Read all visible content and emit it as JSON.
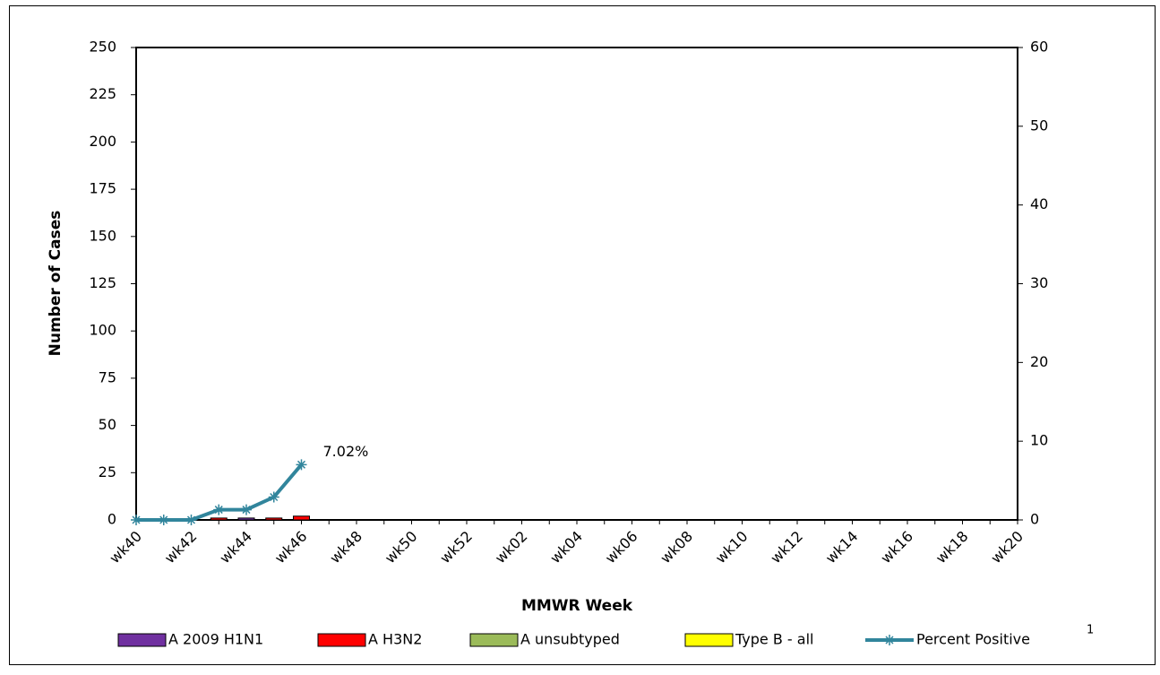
{
  "chart_data": {
    "type": "bar",
    "x_label": "MMWR Week",
    "y_label": "Number of Cases",
    "annotation": "1",
    "categories": [
      "wk40",
      null,
      "wk42",
      null,
      "wk44",
      null,
      "wk46",
      null,
      "wk48",
      null,
      "wk50",
      null,
      "wk52",
      null,
      "wk02",
      null,
      "wk04",
      null,
      "wk06",
      null,
      "wk08",
      null,
      "wk10",
      null,
      "wk12",
      null,
      "wk14",
      null,
      "wk16",
      null,
      "wk18",
      null,
      "wk20"
    ],
    "series": [
      {
        "name": "A 2009 H1N1",
        "type": "bar",
        "color": "#7030a0",
        "values": [
          0,
          0,
          0,
          0,
          1,
          0,
          0,
          null,
          null,
          null,
          null,
          null,
          null,
          null,
          null,
          null,
          null,
          null,
          null,
          null,
          null,
          null,
          null,
          null,
          null,
          null,
          null,
          null,
          null,
          null,
          null,
          null,
          null
        ]
      },
      {
        "name": "A H3N2",
        "type": "bar",
        "color": "#ff0000",
        "values": [
          0,
          0,
          0,
          1,
          0,
          1,
          2,
          null,
          null,
          null,
          null,
          null,
          null,
          null,
          null,
          null,
          null,
          null,
          null,
          null,
          null,
          null,
          null,
          null,
          null,
          null,
          null,
          null,
          null,
          null,
          null,
          null,
          null
        ]
      },
      {
        "name": "A unsubtyped",
        "type": "bar",
        "color": "#9bbb59",
        "values": [
          0,
          0,
          0,
          0,
          0,
          0,
          0,
          null,
          null,
          null,
          null,
          null,
          null,
          null,
          null,
          null,
          null,
          null,
          null,
          null,
          null,
          null,
          null,
          null,
          null,
          null,
          null,
          null,
          null,
          null,
          null,
          null,
          null
        ]
      },
      {
        "name": "Type B - all",
        "type": "bar",
        "color": "#ffff00",
        "values": [
          0,
          0,
          0,
          0,
          0,
          0,
          0,
          null,
          null,
          null,
          null,
          null,
          null,
          null,
          null,
          null,
          null,
          null,
          null,
          null,
          null,
          null,
          null,
          null,
          null,
          null,
          null,
          null,
          null,
          null,
          null,
          null,
          null
        ]
      },
      {
        "name": "Percent Positive",
        "type": "line",
        "axis": "y2",
        "color": "#31859c",
        "values": [
          0,
          0,
          0,
          1.3,
          1.3,
          2.9,
          7.02,
          null,
          null,
          null,
          null,
          null,
          null,
          null,
          null,
          null,
          null,
          null,
          null,
          null,
          null,
          null,
          null,
          null,
          null,
          null,
          null,
          null,
          null,
          null,
          null,
          null,
          null
        ],
        "value_labels": [
          null,
          null,
          null,
          null,
          null,
          null,
          "7.02%",
          null,
          null,
          null,
          null,
          null,
          null,
          null,
          null,
          null,
          null,
          null,
          null,
          null,
          null,
          null,
          null,
          null,
          null,
          null,
          null,
          null,
          null,
          null,
          null,
          null,
          null
        ]
      }
    ],
    "ylim": [
      0,
      250
    ],
    "yticks": [
      0,
      25,
      50,
      75,
      100,
      125,
      150,
      175,
      200,
      225,
      250
    ],
    "y2lim": [
      0,
      60
    ],
    "y2ticks": [
      0,
      10,
      20,
      30,
      40,
      50,
      60
    ],
    "legend": "bottom"
  }
}
